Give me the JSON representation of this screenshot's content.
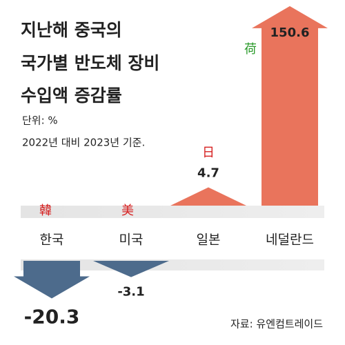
{
  "chart_data": {
    "type": "arrow-bar",
    "title": [
      "지난해 중국의",
      "국가별 반도체 장비",
      "수입액 증감률"
    ],
    "subtitle": [
      "단위: %",
      "2022년 대비 2023년 기준."
    ],
    "source": "자료: 유엔컴트레이드",
    "categories": [
      "한국",
      "미국",
      "일본",
      "네덜란드"
    ],
    "hanja": [
      "韓",
      "美",
      "日",
      "荷"
    ],
    "hanja_colors": [
      "#d62020",
      "#d62020",
      "#d62020",
      "#2a9a2a"
    ],
    "values": [
      -20.3,
      -3.1,
      4.7,
      150.6
    ],
    "positive_color": "#e9745c",
    "negative_color": "#4d6b8c"
  }
}
